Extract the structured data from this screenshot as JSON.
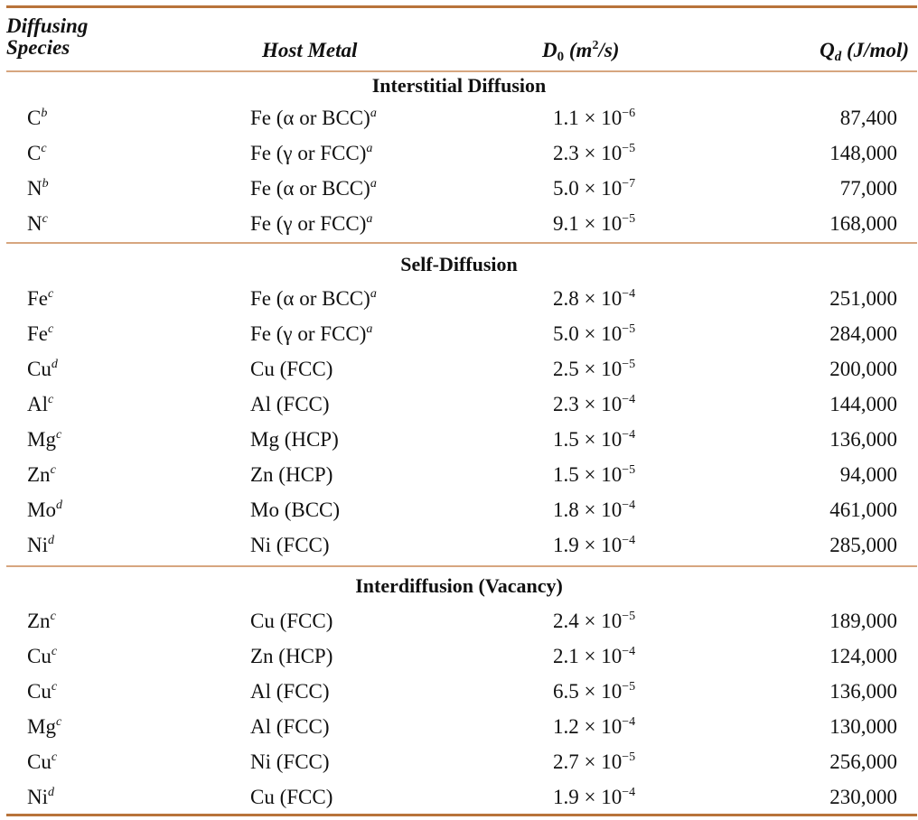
{
  "headers": {
    "species_line1": "Diffusing",
    "species_line2": "Species",
    "host": "Host Metal",
    "d0_main": "D",
    "d0_sub": "0",
    "d0_units_pre": "(m",
    "d0_units_exp": "2",
    "d0_units_post": "/s)",
    "qd_main": "Q",
    "qd_sub": "d",
    "qd_units": "(J/mol)"
  },
  "sections": [
    {
      "title": "Interstitial Diffusion",
      "rows": [
        {
          "species": "C",
          "species_note": "b",
          "host": "Fe (α or BCC)",
          "host_note": "a",
          "d0_mant": "1.1 × 10",
          "d0_exp": "−6",
          "qd": "87,400"
        },
        {
          "species": "C",
          "species_note": "c",
          "host": "Fe (γ or FCC)",
          "host_note": "a",
          "d0_mant": "2.3 × 10",
          "d0_exp": "−5",
          "qd": "148,000"
        },
        {
          "species": "N",
          "species_note": "b",
          "host": "Fe (α or BCC)",
          "host_note": "a",
          "d0_mant": "5.0 × 10",
          "d0_exp": "−7",
          "qd": "77,000"
        },
        {
          "species": "N",
          "species_note": "c",
          "host": "Fe (γ or FCC)",
          "host_note": "a",
          "d0_mant": "9.1 × 10",
          "d0_exp": "−5",
          "qd": "168,000"
        }
      ]
    },
    {
      "title": "Self-Diffusion",
      "rows": [
        {
          "species": "Fe",
          "species_note": "c",
          "host": "Fe (α or BCC)",
          "host_note": "a",
          "d0_mant": "2.8 × 10",
          "d0_exp": "−4",
          "qd": "251,000"
        },
        {
          "species": "Fe",
          "species_note": "c",
          "host": "Fe (γ or FCC)",
          "host_note": "a",
          "d0_mant": "5.0 × 10",
          "d0_exp": "−5",
          "qd": "284,000"
        },
        {
          "species": "Cu",
          "species_note": "d",
          "host": "Cu (FCC)",
          "host_note": "",
          "d0_mant": "2.5 × 10",
          "d0_exp": "−5",
          "qd": "200,000"
        },
        {
          "species": "Al",
          "species_note": "c",
          "host": "Al (FCC)",
          "host_note": "",
          "d0_mant": "2.3 × 10",
          "d0_exp": "−4",
          "qd": "144,000"
        },
        {
          "species": "Mg",
          "species_note": "c",
          "host": "Mg (HCP)",
          "host_note": "",
          "d0_mant": "1.5 × 10",
          "d0_exp": "−4",
          "qd": "136,000"
        },
        {
          "species": "Zn",
          "species_note": "c",
          "host": "Zn (HCP)",
          "host_note": "",
          "d0_mant": "1.5 × 10",
          "d0_exp": "−5",
          "qd": "94,000"
        },
        {
          "species": "Mo",
          "species_note": "d",
          "host": "Mo (BCC)",
          "host_note": "",
          "d0_mant": "1.8 × 10",
          "d0_exp": "−4",
          "qd": "461,000"
        },
        {
          "species": "Ni",
          "species_note": "d",
          "host": "Ni (FCC)",
          "host_note": "",
          "d0_mant": "1.9 × 10",
          "d0_exp": "−4",
          "qd": "285,000"
        }
      ]
    },
    {
      "title": "Interdiffusion (Vacancy)",
      "rows": [
        {
          "species": "Zn",
          "species_note": "c",
          "host": "Cu (FCC)",
          "host_note": "",
          "d0_mant": "2.4 × 10",
          "d0_exp": "−5",
          "qd": "189,000"
        },
        {
          "species": "Cu",
          "species_note": "c",
          "host": "Zn (HCP)",
          "host_note": "",
          "d0_mant": "2.1 × 10",
          "d0_exp": "−4",
          "qd": "124,000"
        },
        {
          "species": "Cu",
          "species_note": "c",
          "host": "Al (FCC)",
          "host_note": "",
          "d0_mant": "6.5 × 10",
          "d0_exp": "−5",
          "qd": "136,000"
        },
        {
          "species": "Mg",
          "species_note": "c",
          "host": "Al (FCC)",
          "host_note": "",
          "d0_mant": "1.2 × 10",
          "d0_exp": "−4",
          "qd": "130,000"
        },
        {
          "species": "Cu",
          "species_note": "c",
          "host": "Ni (FCC)",
          "host_note": "",
          "d0_mant": "2.7 × 10",
          "d0_exp": "−5",
          "qd": "256,000"
        },
        {
          "species": "Ni",
          "species_note": "d",
          "host": "Cu (FCC)",
          "host_note": "",
          "d0_mant": "1.9 × 10",
          "d0_exp": "−4",
          "qd": "230,000"
        }
      ]
    }
  ],
  "colors": {
    "rule": "#b8733a",
    "rule_light": "#d7a67f",
    "text": "#111111"
  }
}
